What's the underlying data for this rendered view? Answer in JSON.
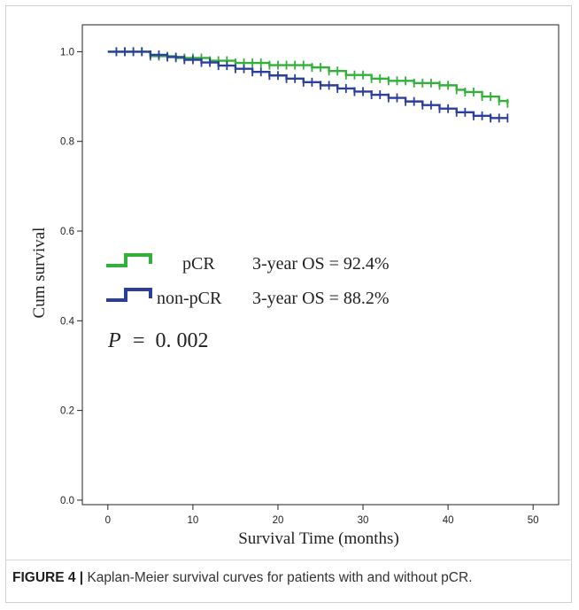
{
  "chart_data": {
    "type": "line",
    "xlabel": "Survival Time (months)",
    "ylabel": "Cum survival",
    "xlim": [
      -3,
      53
    ],
    "ylim": [
      -0.01,
      1.06
    ],
    "xticks": [
      "0",
      "10",
      "20",
      "30",
      "40",
      "50"
    ],
    "yticks": [
      "0.0",
      "0.2",
      "0.4",
      "0.6",
      "0.8",
      "1.0"
    ],
    "grid": false,
    "step": true,
    "series": [
      {
        "name": "pCR",
        "color": "#33b03a",
        "x": [
          0,
          5,
          8,
          12,
          15,
          19,
          24,
          26,
          28,
          31,
          33,
          36,
          39,
          41,
          42,
          44,
          46,
          47
        ],
        "y": [
          1.0,
          0.99,
          0.986,
          0.98,
          0.975,
          0.97,
          0.965,
          0.957,
          0.948,
          0.94,
          0.935,
          0.93,
          0.925,
          0.915,
          0.91,
          0.9,
          0.89,
          0.885
        ],
        "censor_x": [
          1,
          2,
          3,
          4,
          5,
          6,
          7,
          8,
          9,
          10,
          11,
          12,
          13,
          14,
          15,
          16,
          17,
          18,
          19,
          20,
          21,
          22,
          23,
          24,
          25,
          26,
          27,
          28,
          29,
          30,
          31,
          32,
          33,
          34,
          35,
          36,
          37,
          38,
          39,
          40,
          41,
          42,
          43,
          44,
          45,
          46,
          47
        ]
      },
      {
        "name": "non-pCR",
        "color": "#2b3f9a",
        "x": [
          0,
          5,
          7,
          9,
          11,
          13,
          15,
          17,
          19,
          21,
          23,
          25,
          27,
          29,
          31,
          33,
          35,
          37,
          39,
          41,
          43,
          45
        ],
        "y": [
          1.0,
          0.993,
          0.988,
          0.982,
          0.976,
          0.969,
          0.962,
          0.955,
          0.947,
          0.94,
          0.932,
          0.925,
          0.918,
          0.911,
          0.904,
          0.897,
          0.889,
          0.881,
          0.873,
          0.865,
          0.857,
          0.852
        ],
        "censor_x": [
          1,
          2,
          3,
          4,
          5,
          6,
          7,
          8,
          9,
          10,
          11,
          12,
          13,
          14,
          15,
          16,
          17,
          18,
          19,
          20,
          21,
          22,
          23,
          24,
          25,
          26,
          27,
          28,
          29,
          30,
          31,
          32,
          33,
          34,
          35,
          36,
          37,
          38,
          39,
          40,
          41,
          42,
          43,
          44,
          45,
          46,
          47
        ]
      }
    ],
    "legend": [
      {
        "label": "pCR",
        "stat": "3-year OS = 92.4%",
        "color": "#33b03a"
      },
      {
        "label": "non-pCR",
        "stat": "3-year OS = 88.2%",
        "color": "#2b3f9a"
      }
    ],
    "annotation": {
      "p_label": "P",
      "p_value": "=  0. 002"
    }
  },
  "caption": {
    "lead": "FIGURE 4 |",
    "text": " Kaplan-Meier survival curves for patients with and without pCR."
  }
}
